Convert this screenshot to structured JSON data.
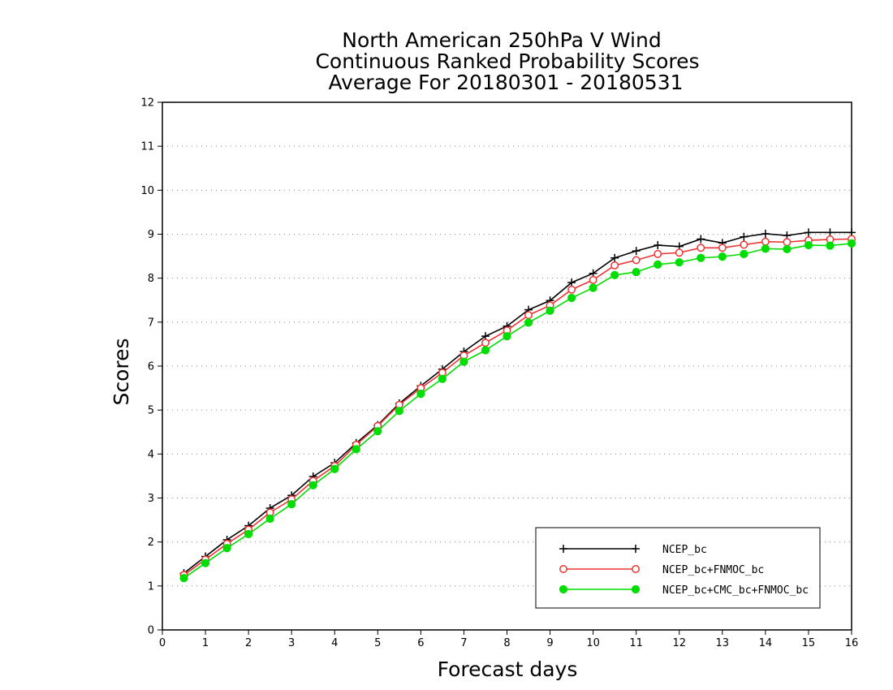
{
  "chart_data": {
    "type": "line",
    "title_lines": [
      "North American 250hPa V Wind",
      "Continuous Ranked Probability Scores",
      "Average For 20180301 - 20180531"
    ],
    "xlabel": "Forecast days",
    "ylabel": "Scores",
    "xlim": [
      0,
      16
    ],
    "ylim": [
      0,
      12
    ],
    "xticks": [
      "0",
      "1",
      "2",
      "3",
      "4",
      "5",
      "6",
      "7",
      "8",
      "9",
      "10",
      "11",
      "12",
      "13",
      "14",
      "15",
      "16"
    ],
    "yticks": [
      "0",
      "1",
      "2",
      "3",
      "4",
      "5",
      "6",
      "7",
      "8",
      "9",
      "10",
      "11",
      "12"
    ],
    "grid": "horizontal dotted",
    "legend_position": "bottom-right",
    "x": [
      0.5,
      1,
      1.5,
      2,
      2.5,
      3,
      3.5,
      4,
      4.5,
      5,
      5.5,
      6,
      6.5,
      7,
      7.5,
      8,
      8.5,
      9,
      9.5,
      10,
      10.5,
      11,
      11.5,
      12,
      12.5,
      13,
      13.5,
      14,
      14.5,
      15,
      15.5,
      16
    ],
    "series": [
      {
        "name": "NCEP_bc",
        "color": "#000000",
        "marker": "plus",
        "values": [
          1.29,
          1.67,
          2.05,
          2.37,
          2.77,
          3.06,
          3.49,
          3.8,
          4.25,
          4.66,
          5.15,
          5.55,
          5.93,
          6.33,
          6.68,
          6.91,
          7.28,
          7.49,
          7.9,
          8.11,
          8.46,
          8.62,
          8.75,
          8.72,
          8.89,
          8.8,
          8.94,
          9.01,
          8.97,
          9.04,
          9.04,
          9.04
        ]
      },
      {
        "name": "NCEP_bc+FNMOC_bc",
        "color": "#ee3333",
        "marker": "open-circle",
        "values": [
          1.25,
          1.6,
          1.96,
          2.28,
          2.67,
          2.97,
          3.39,
          3.73,
          4.21,
          4.64,
          5.12,
          5.5,
          5.85,
          6.24,
          6.53,
          6.81,
          7.16,
          7.38,
          7.74,
          7.96,
          8.29,
          8.41,
          8.55,
          8.58,
          8.69,
          8.69,
          8.76,
          8.83,
          8.82,
          8.86,
          8.88,
          8.89
        ]
      },
      {
        "name": "NCEP_bc+CMC_bc+FNMOC_bc",
        "color": "#00dd00",
        "marker": "filled-circle",
        "values": [
          1.18,
          1.52,
          1.86,
          2.18,
          2.53,
          2.86,
          3.29,
          3.66,
          4.11,
          4.52,
          4.98,
          5.37,
          5.71,
          6.1,
          6.36,
          6.68,
          6.99,
          7.26,
          7.55,
          7.78,
          8.07,
          8.14,
          8.31,
          8.36,
          8.46,
          8.49,
          8.55,
          8.67,
          8.66,
          8.75,
          8.74,
          8.79
        ]
      }
    ]
  }
}
